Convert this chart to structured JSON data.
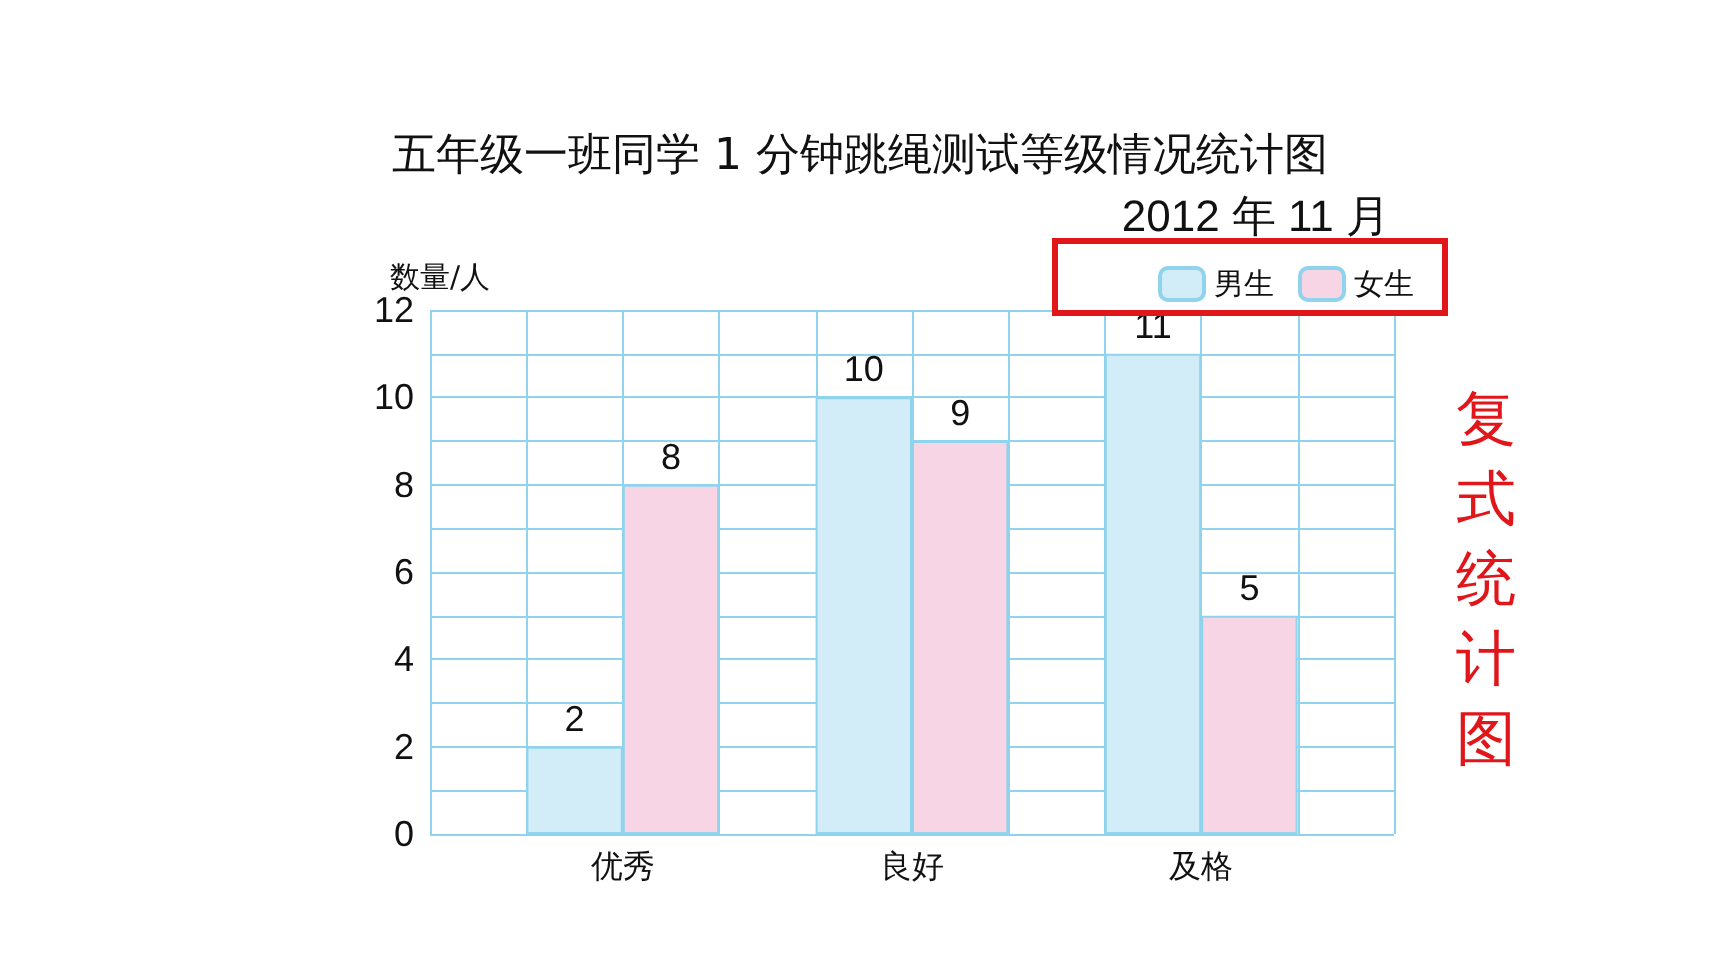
{
  "chart_data": {
    "type": "bar",
    "title": "五年级一班同学 1 分钟跳绳测试等级情况统计图",
    "subtitle": "2012 年 11 月",
    "ylabel": "数量/人",
    "categories": [
      "优秀",
      "良好",
      "及格"
    ],
    "series": [
      {
        "name": "男生",
        "color": "#d3edf8",
        "values": [
          2,
          10,
          11
        ]
      },
      {
        "name": "女生",
        "color": "#f8d5e5",
        "values": [
          8,
          9,
          5
        ]
      }
    ],
    "ylim": [
      0,
      12
    ],
    "yticks": [
      0,
      {
        "value": 1,
        "label": null
      },
      2,
      {
        "value": 3,
        "label": null
      },
      4,
      {
        "value": 5,
        "label": null
      },
      6,
      {
        "value": 7,
        "label": null
      },
      8,
      {
        "value": 9,
        "label": null
      },
      10,
      {
        "value": 11,
        "label": null
      },
      12
    ],
    "data_labels": true,
    "grid": true,
    "legend": "top right",
    "annotations": [
      "复式统计图"
    ]
  }
}
